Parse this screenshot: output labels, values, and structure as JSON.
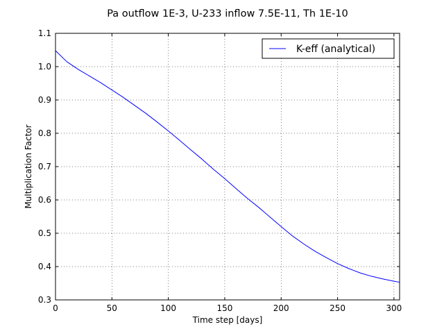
{
  "chart_data": {
    "type": "line",
    "title": "Pa outflow 1E-3, U-233 inflow 7.5E-11, Th 1E-10",
    "xlabel": "Time step [days]",
    "ylabel": "Multiplication Factor",
    "xlim": [
      0,
      305
    ],
    "ylim": [
      0.3,
      1.1
    ],
    "xticks": [
      0,
      50,
      100,
      150,
      200,
      250,
      300
    ],
    "yticks": [
      0.3,
      0.4,
      0.5,
      0.6,
      0.7,
      0.8,
      0.9,
      1.0,
      1.1
    ],
    "xtick_labels": [
      "0",
      "50",
      "100",
      "150",
      "200",
      "250",
      "300"
    ],
    "ytick_labels": [
      "0.3",
      "0.4",
      "0.5",
      "0.6",
      "0.7",
      "0.8",
      "0.9",
      "1.0",
      "1.1"
    ],
    "grid": true,
    "legend_position": "top-right",
    "series": [
      {
        "name": "K-eff (analytical)",
        "color": "#0000ff",
        "x": [
          0,
          10,
          20,
          30,
          40,
          50,
          60,
          70,
          80,
          90,
          100,
          110,
          120,
          130,
          140,
          150,
          160,
          170,
          180,
          190,
          200,
          210,
          220,
          230,
          240,
          250,
          260,
          270,
          280,
          290,
          300,
          305
        ],
        "y": [
          1.048,
          1.015,
          0.992,
          0.972,
          0.952,
          0.93,
          0.908,
          0.884,
          0.86,
          0.834,
          0.807,
          0.779,
          0.75,
          0.722,
          0.692,
          0.664,
          0.634,
          0.605,
          0.578,
          0.549,
          0.52,
          0.492,
          0.468,
          0.446,
          0.427,
          0.409,
          0.394,
          0.381,
          0.371,
          0.363,
          0.356,
          0.353
        ]
      }
    ]
  }
}
